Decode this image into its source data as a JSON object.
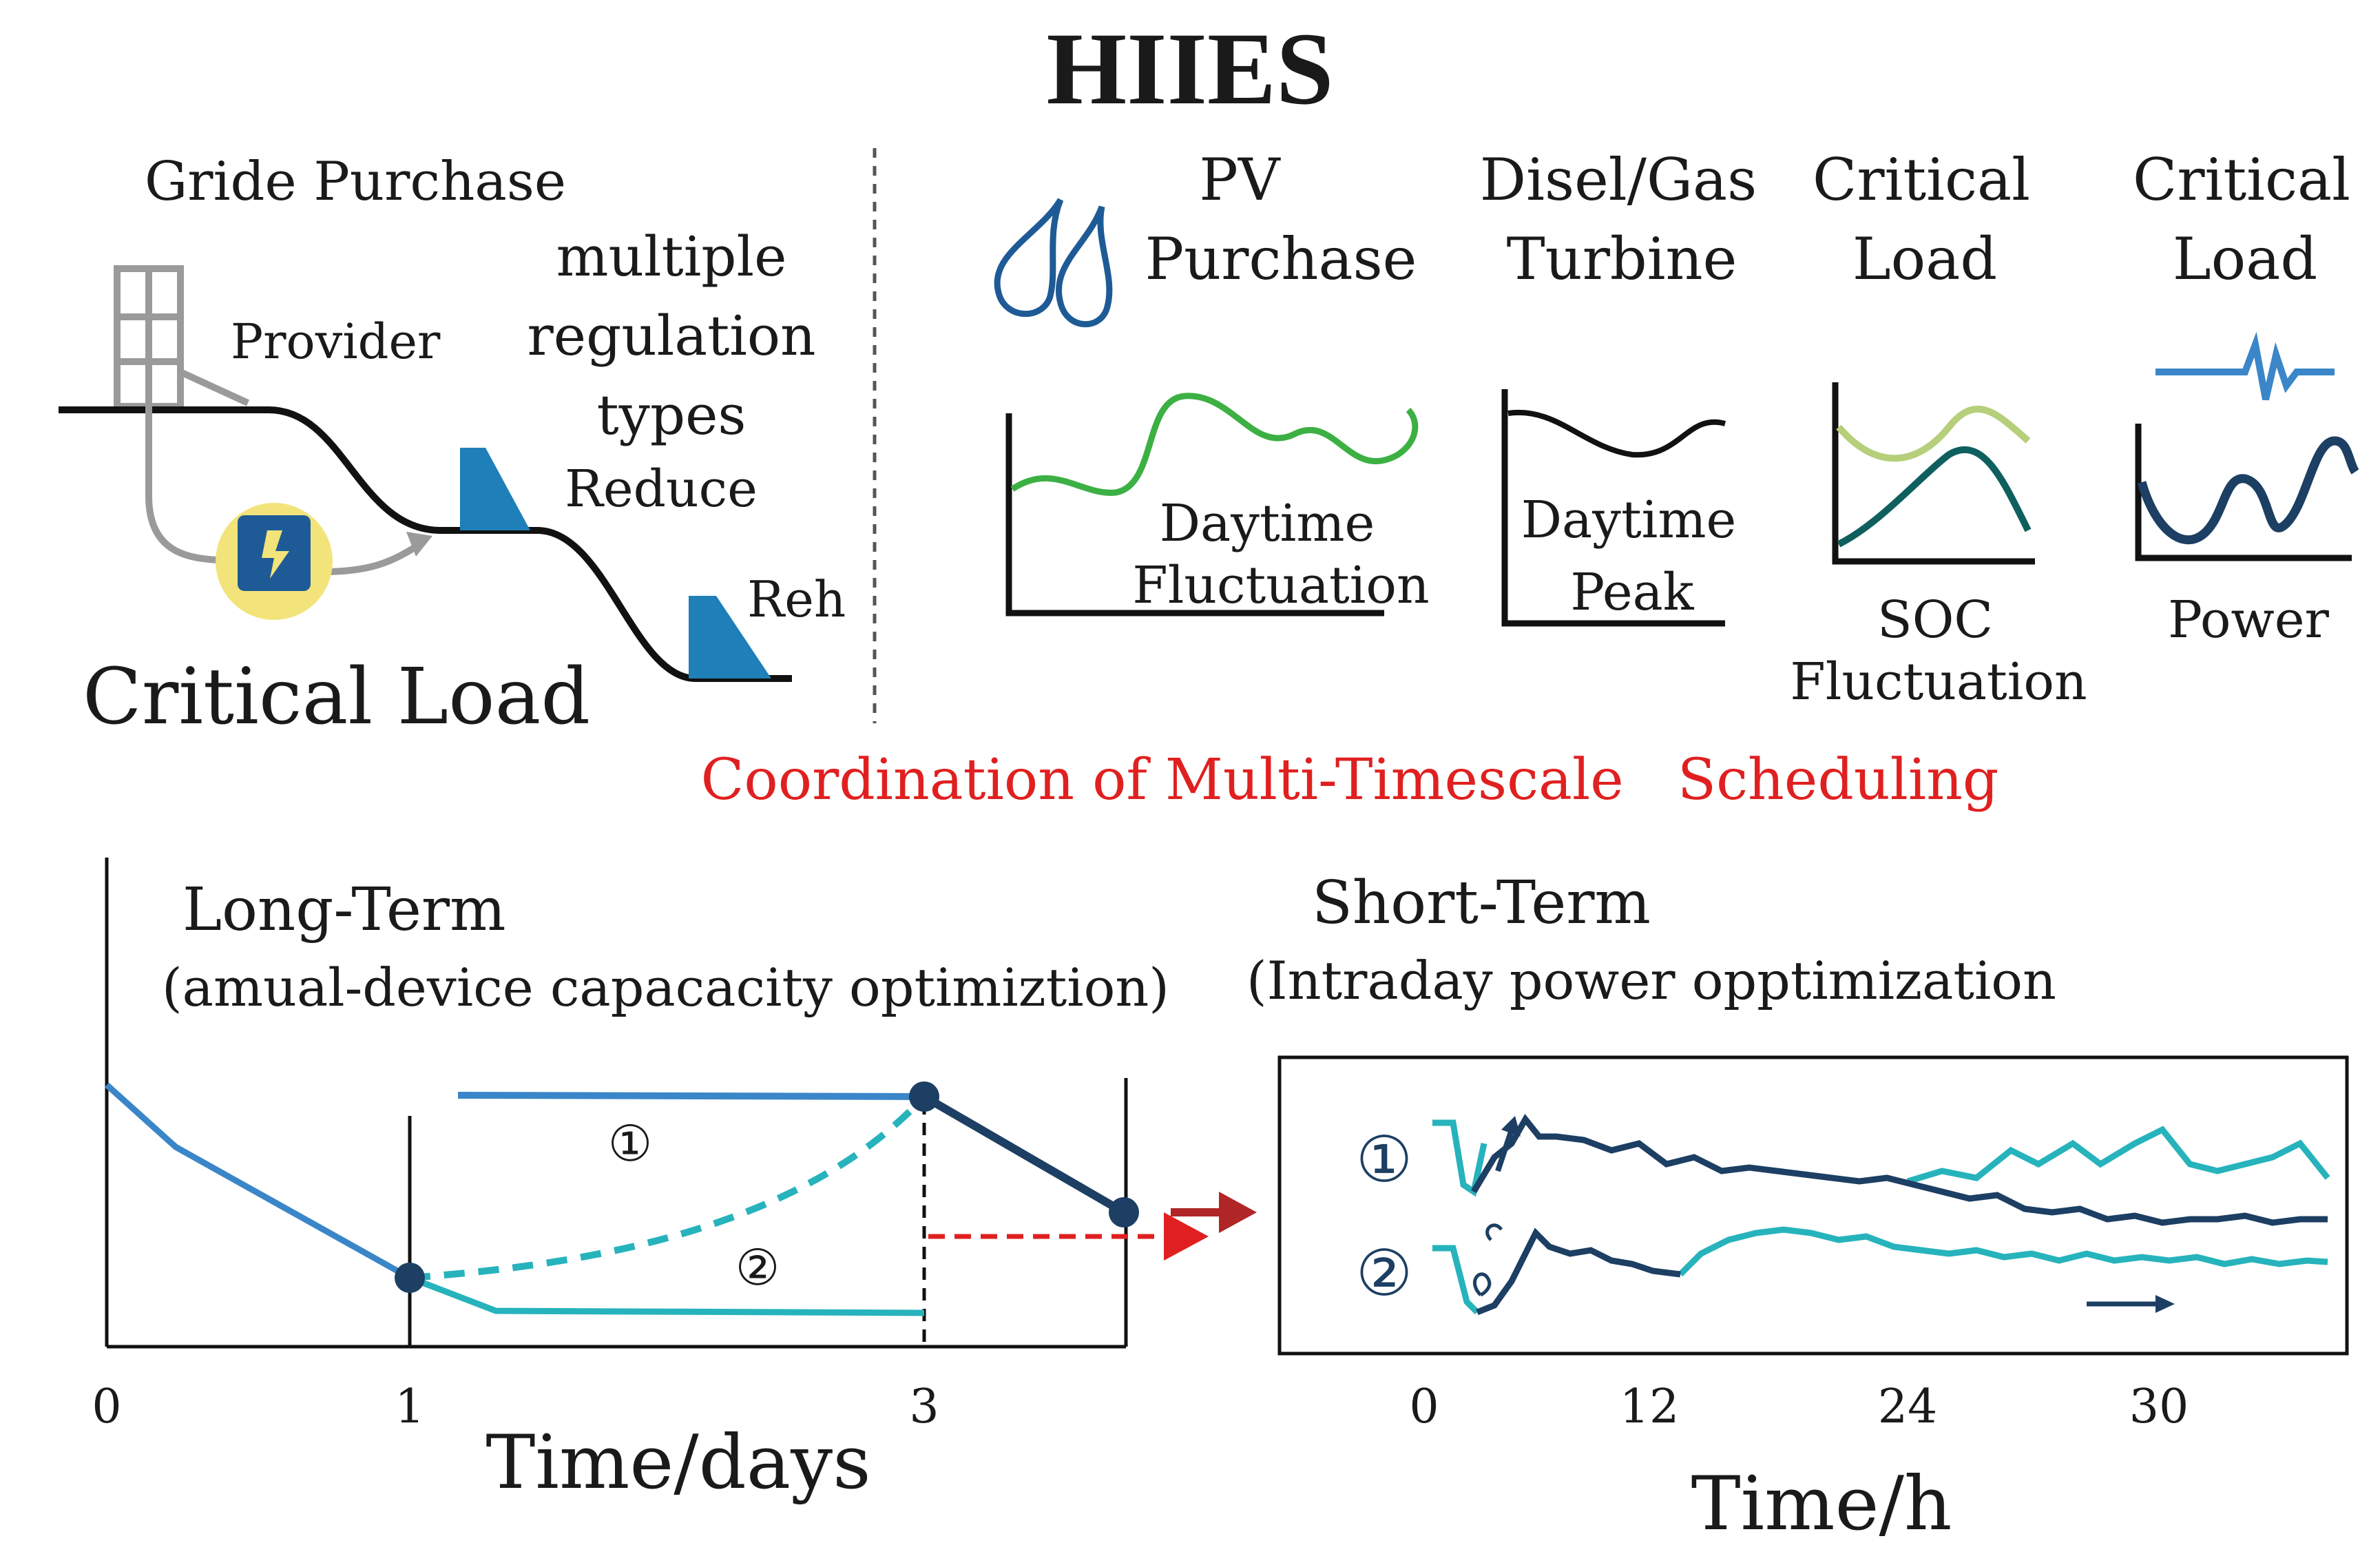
{
  "title": "HIIES",
  "left_panel": {
    "grid_purchase": "Gride Purchase",
    "provider": "Provider",
    "multiple": "multiple",
    "regulation": "regulation",
    "types": "types",
    "reduce": "Reduce",
    "reh": "Reh",
    "critical_load": "Critical Load"
  },
  "columns": [
    {
      "line1": "PV",
      "line2": "Purchase",
      "caption1": "Daytime",
      "caption2": "Fluctuation"
    },
    {
      "line1": "Disel/Gas",
      "line2": "Turbine",
      "caption1": "Daytime",
      "caption2": "Peak"
    },
    {
      "line1": "Critical",
      "line2": "Load",
      "caption1": "SOC",
      "caption2": "Fluctuation"
    },
    {
      "line1": "Critical",
      "line2": "Load",
      "caption1": "Power"
    }
  ],
  "coordination": "Coordination of Multi-Timescale   Scheduling",
  "long_term": {
    "title": "Long-Term",
    "subtitle": "(amual-device capacacity optimiztion)",
    "xlabel": "Time/days",
    "ticks": [
      "0",
      "1",
      "3"
    ],
    "path1_label": "①",
    "path2_label": "②"
  },
  "short_term": {
    "title": "Short-Term",
    "subtitle": "(Intraday power opptimization",
    "xlabel": "Time/h",
    "ticks": [
      "0",
      "12",
      "24",
      "30"
    ],
    "row1_label": "①",
    "row2_label": "②"
  },
  "colors": {
    "red": "#e02020",
    "blue": "#3a86c8",
    "navy": "#1c3f63",
    "teal": "#26b3bc",
    "green": "#3cb043",
    "light_green": "#b5cf7a",
    "dark_teal": "#0f5f5f",
    "yellow": "#f2e47a"
  }
}
